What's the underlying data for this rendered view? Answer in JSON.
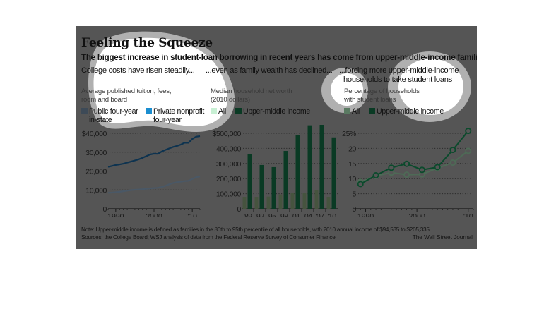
{
  "header": {
    "title": "Feeling the Squeeze",
    "subtitle": "The biggest increase in student-loan borrowing in recent years has come from upper-middle-income families."
  },
  "panels": [
    {
      "lead": "College costs have risen steadily...",
      "desc_lines": [
        "Average published tuition, fees,",
        "room and board"
      ],
      "legend": [
        {
          "label_lines": [
            "Public four-year",
            "in-state"
          ],
          "color": "#3d4a57"
        },
        {
          "label_lines": [
            "Private nonprofit",
            "four-year"
          ],
          "color": "#1b8ed0"
        }
      ]
    },
    {
      "lead": "...even as family wealth has declined...",
      "desc_lines": [
        "Median household net worth",
        "(2010 dollars)"
      ],
      "legend": [
        {
          "label_lines": [
            "All"
          ],
          "color": "#c8f0d4"
        },
        {
          "label_lines": [
            "Upper-middle income"
          ],
          "color": "#0a3a24"
        }
      ]
    },
    {
      "lead_lines": [
        "...forcing more upper-middle-income",
        "households to take student loans"
      ],
      "desc_lines": [
        "Percentage of households",
        "with student loans"
      ],
      "legend": [
        {
          "label_lines": [
            "All"
          ],
          "color": "#5a7a62"
        },
        {
          "label_lines": [
            "Upper-middle income"
          ],
          "color": "#0a3a24"
        }
      ]
    }
  ],
  "footer": {
    "note": "Note: Upper-middle income is defined as families in the 80th to 95th percentile of all households, with 2010 annual income of $94,535 to $205,335.",
    "sources": "Sources: the College Board; WSJ analysis of data from the Federal Reserve Survey of Consumer Finance",
    "credit": "The Wall Street Journal"
  },
  "chart_data": [
    {
      "type": "line",
      "title": "College costs have risen steadily...",
      "subtitle": "Average published tuition, fees, room and board",
      "xlabel": "",
      "ylabel": "",
      "xlim": [
        1988,
        2012
      ],
      "ylim": [
        0,
        40000
      ],
      "x_ticks": [
        1990,
        2000,
        2010
      ],
      "x_tick_labels": [
        "1990",
        "2000",
        "'10"
      ],
      "y_ticks": [
        0,
        10000,
        20000,
        30000,
        40000
      ],
      "y_tick_labels": [
        "0",
        "10,000",
        "20,000",
        "30,000",
        "$40,000"
      ],
      "grid": true,
      "legend": "top",
      "x": [
        1988,
        1989,
        1990,
        1991,
        1992,
        1993,
        1994,
        1995,
        1996,
        1997,
        1998,
        1999,
        2000,
        2001,
        2002,
        2003,
        2004,
        2005,
        2006,
        2007,
        2008,
        2009,
        2010,
        2011,
        2012
      ],
      "series": [
        {
          "name": "Public four-year in-state",
          "color": "#4a5866",
          "values": [
            8500,
            8600,
            8800,
            9000,
            9300,
            9600,
            9900,
            10100,
            10200,
            10400,
            10600,
            10800,
            11000,
            11100,
            11500,
            12200,
            13000,
            13700,
            14100,
            14400,
            14700,
            14800,
            15800,
            16700,
            17200
          ]
        },
        {
          "name": "Private nonprofit four-year",
          "color": "#0d3350",
          "values": [
            22200,
            22700,
            23200,
            23500,
            23900,
            24500,
            25000,
            25600,
            26200,
            27000,
            27900,
            28800,
            29200,
            29100,
            30300,
            31200,
            32000,
            32800,
            33300,
            34000,
            35000,
            35000,
            37000,
            38200,
            38500
          ]
        }
      ]
    },
    {
      "type": "bar",
      "title": "...even as family wealth has declined...",
      "subtitle": "Median household net worth (2010 dollars)",
      "categories": [
        "'89",
        "'92",
        "'95",
        "'98",
        "'01",
        "'04",
        "'07",
        "'10"
      ],
      "ylim": [
        0,
        500000
      ],
      "y_ticks": [
        0,
        100000,
        200000,
        300000,
        400000,
        500000
      ],
      "y_tick_labels": [
        "0",
        "100,000",
        "200,000",
        "300,000",
        "400,000",
        "$500,000"
      ],
      "grid": true,
      "legend": "top",
      "series": [
        {
          "name": "All",
          "color": "#46543f",
          "values": [
            79000,
            75000,
            81000,
            95000,
            107000,
            107000,
            126000,
            77000
          ]
        },
        {
          "name": "Upper-middle income",
          "color": "#0a3a24",
          "values": [
            360000,
            290000,
            276000,
            383000,
            487000,
            553000,
            587000,
            473000
          ]
        }
      ]
    },
    {
      "type": "line",
      "title": "...forcing more upper-middle-income households to take student loans",
      "subtitle": "Percentage of households with student loans",
      "x": [
        1989,
        1992,
        1995,
        1998,
        2001,
        2004,
        2007,
        2010
      ],
      "xlim": [
        1988,
        2011
      ],
      "x_ticks": [
        1990,
        2000,
        2010
      ],
      "x_tick_labels": [
        "1990",
        "2000",
        "'10"
      ],
      "ylim": [
        0,
        25
      ],
      "y_ticks": [
        0,
        5,
        10,
        15,
        20,
        25
      ],
      "y_tick_labels": [
        "0",
        "5",
        "10",
        "15",
        "20",
        "25%"
      ],
      "grid": true,
      "legend": "top",
      "series": [
        {
          "name": "All",
          "color": "#4e6a56",
          "values": [
            8.9,
            10.9,
            12.0,
            11.3,
            11.4,
            13.5,
            15.3,
            19.2
          ]
        },
        {
          "name": "Upper-middle income",
          "color": "#0b4a2c",
          "values": [
            8.2,
            11.1,
            13.6,
            14.9,
            12.9,
            13.8,
            19.5,
            25.8
          ]
        }
      ]
    }
  ]
}
